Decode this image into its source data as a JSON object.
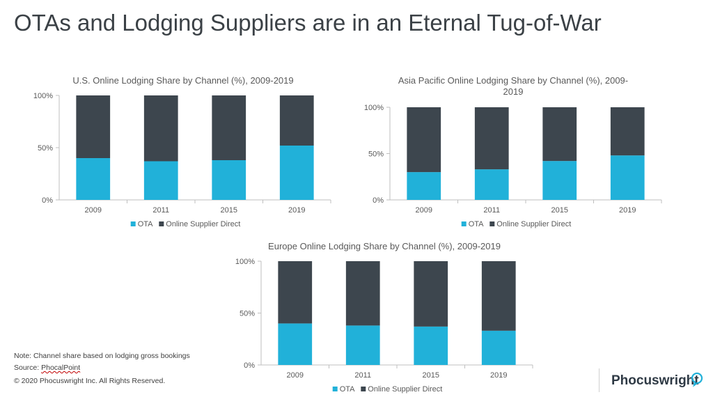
{
  "page": {
    "title": "OTAs and Lodging Suppliers are in an Eternal Tug-of-War",
    "note": "Note: Channel share based on lodging gross bookings",
    "source_prefix": "Source: ",
    "source_name": "PhocalPoint",
    "copyright": "© 2020 Phocuswright Inc. All Rights Reserved.",
    "brand": "Phocuswright"
  },
  "colors": {
    "ota": "#21b1d9",
    "direct": "#3d464e",
    "axis": "#bfbfbf",
    "tick_text": "#595959"
  },
  "chart_data": [
    {
      "type": "bar",
      "stacked": true,
      "title": "U.S. Online Lodging Share by Channel (%), 2009-2019",
      "categories": [
        "2009",
        "2011",
        "2015",
        "2019"
      ],
      "series": [
        {
          "name": "OTA",
          "values": [
            40,
            37,
            38,
            52
          ]
        },
        {
          "name": "Online Supplier Direct",
          "values": [
            60,
            63,
            62,
            48
          ]
        }
      ],
      "ylim": [
        0,
        100
      ],
      "yticks": [
        "0%",
        "50%",
        "100%"
      ],
      "grid": false,
      "legend": "bottom"
    },
    {
      "type": "bar",
      "stacked": true,
      "title": "Asia Pacific Online Lodging Share by Channel (%), 2009-2019",
      "categories": [
        "2009",
        "2011",
        "2015",
        "2019"
      ],
      "series": [
        {
          "name": "OTA",
          "values": [
            30,
            33,
            42,
            48
          ]
        },
        {
          "name": "Online Supplier Direct",
          "values": [
            70,
            67,
            58,
            52
          ]
        }
      ],
      "ylim": [
        0,
        100
      ],
      "yticks": [
        "0%",
        "50%",
        "100%"
      ],
      "grid": false,
      "legend": "bottom"
    },
    {
      "type": "bar",
      "stacked": true,
      "title": "Europe Online Lodging Share by Channel (%), 2009-2019",
      "categories": [
        "2009",
        "2011",
        "2015",
        "2019"
      ],
      "series": [
        {
          "name": "OTA",
          "values": [
            40,
            38,
            37,
            33
          ]
        },
        {
          "name": "Online Supplier Direct",
          "values": [
            60,
            62,
            63,
            67
          ]
        }
      ],
      "ylim": [
        0,
        100
      ],
      "yticks": [
        "0%",
        "50%",
        "100%"
      ],
      "grid": false,
      "legend": "bottom"
    }
  ]
}
